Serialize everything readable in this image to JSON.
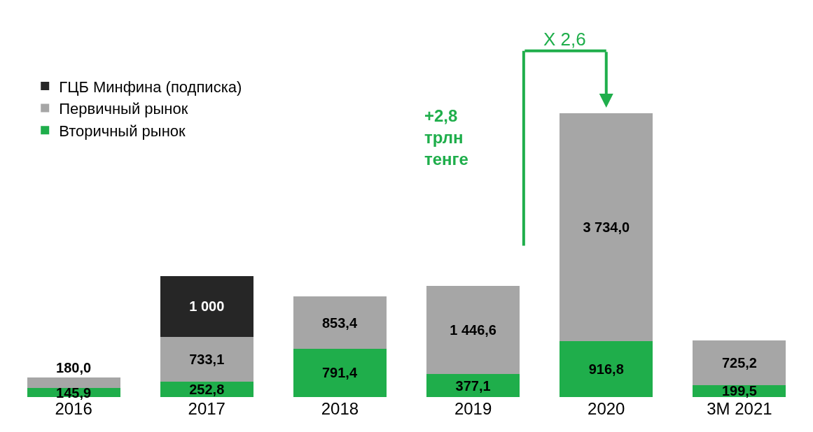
{
  "chart_data": {
    "type": "bar",
    "stacked": true,
    "categories": [
      "2016",
      "2017",
      "2018",
      "2019",
      "2020",
      "3M 2021"
    ],
    "series": [
      {
        "name": "Вторичный рынок",
        "color": "#1fae4b",
        "values": [
          145.9,
          252.8,
          791.4,
          377.1,
          916.8,
          199.5
        ],
        "value_labels": [
          "145,9",
          "252,8",
          "791,4",
          "377,1",
          "916,8",
          "199,5"
        ]
      },
      {
        "name": "Первичный рынок",
        "color": "#a6a6a6",
        "values": [
          180.0,
          733.1,
          853.4,
          1446.6,
          3734.0,
          725.2
        ],
        "value_labels": [
          "180,0",
          "733,1",
          "853,4",
          "1 446,6",
          "3 734,0",
          "725,2"
        ]
      },
      {
        "name": "ГЦБ Минфина (подписка)",
        "color": "#262626",
        "values": [
          null,
          1000,
          null,
          null,
          null,
          null
        ],
        "value_labels": [
          null,
          "1 000",
          null,
          null,
          null,
          null
        ]
      }
    ],
    "annotations": [
      "X 2,6",
      "+2,8\nтрлн\nтенге"
    ],
    "legend": "top left",
    "tick_labels": "x"
  }
}
